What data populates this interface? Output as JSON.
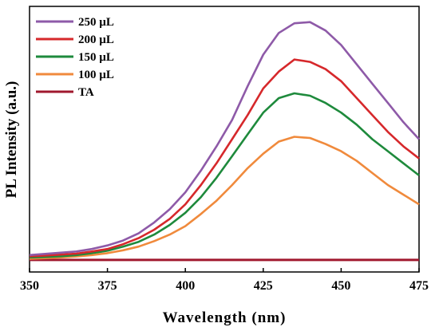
{
  "chart_data": {
    "type": "line",
    "xlabel": "Wavelength (nm)",
    "ylabel": "PL Intensity (a.u.)",
    "xlim": [
      350,
      475
    ],
    "ylim": [
      -0.05,
      1.05
    ],
    "x_ticks": [
      350,
      375,
      400,
      425,
      450,
      475
    ],
    "y_tick_labels": false,
    "grid": false,
    "legend_position": "top-left",
    "series": [
      {
        "name": "250 µL",
        "color": "#8E5AA8",
        "x": [
          350,
          355,
          360,
          365,
          370,
          375,
          380,
          385,
          390,
          395,
          400,
          405,
          410,
          415,
          420,
          425,
          430,
          435,
          440,
          445,
          450,
          455,
          460,
          465,
          470,
          475
        ],
        "y": [
          0.02,
          0.025,
          0.03,
          0.035,
          0.045,
          0.06,
          0.08,
          0.11,
          0.155,
          0.21,
          0.28,
          0.37,
          0.47,
          0.58,
          0.72,
          0.85,
          0.94,
          0.98,
          0.985,
          0.95,
          0.89,
          0.81,
          0.73,
          0.65,
          0.57,
          0.5
        ]
      },
      {
        "name": "200 µL",
        "color": "#D6282B",
        "x": [
          350,
          355,
          360,
          365,
          370,
          375,
          380,
          385,
          390,
          395,
          400,
          405,
          410,
          415,
          420,
          425,
          430,
          435,
          440,
          445,
          450,
          455,
          460,
          465,
          470,
          475
        ],
        "y": [
          0.015,
          0.018,
          0.022,
          0.026,
          0.035,
          0.045,
          0.065,
          0.09,
          0.125,
          0.17,
          0.23,
          0.31,
          0.4,
          0.5,
          0.6,
          0.71,
          0.78,
          0.83,
          0.82,
          0.79,
          0.74,
          0.67,
          0.6,
          0.53,
          0.47,
          0.42
        ]
      },
      {
        "name": "150 µL",
        "color": "#1E8A3C",
        "x": [
          350,
          355,
          360,
          365,
          370,
          375,
          380,
          385,
          390,
          395,
          400,
          405,
          410,
          415,
          420,
          425,
          430,
          435,
          440,
          445,
          450,
          455,
          460,
          465,
          470,
          475
        ],
        "y": [
          0.01,
          0.012,
          0.015,
          0.02,
          0.028,
          0.038,
          0.055,
          0.075,
          0.105,
          0.145,
          0.195,
          0.26,
          0.34,
          0.43,
          0.52,
          0.61,
          0.67,
          0.69,
          0.68,
          0.65,
          0.61,
          0.56,
          0.5,
          0.45,
          0.4,
          0.35
        ]
      },
      {
        "name": "100 µL",
        "color": "#F08A3C",
        "x": [
          350,
          355,
          360,
          365,
          370,
          375,
          380,
          385,
          390,
          395,
          400,
          405,
          410,
          415,
          420,
          425,
          430,
          435,
          440,
          445,
          450,
          455,
          460,
          465,
          470,
          475
        ],
        "y": [
          0.005,
          0.007,
          0.01,
          0.014,
          0.02,
          0.028,
          0.04,
          0.055,
          0.078,
          0.105,
          0.14,
          0.19,
          0.245,
          0.31,
          0.38,
          0.44,
          0.49,
          0.51,
          0.505,
          0.48,
          0.45,
          0.41,
          0.36,
          0.31,
          0.27,
          0.23
        ]
      },
      {
        "name": "TA",
        "color": "#A0182E",
        "x": [
          350,
          475
        ],
        "y": [
          0,
          0
        ]
      }
    ]
  }
}
